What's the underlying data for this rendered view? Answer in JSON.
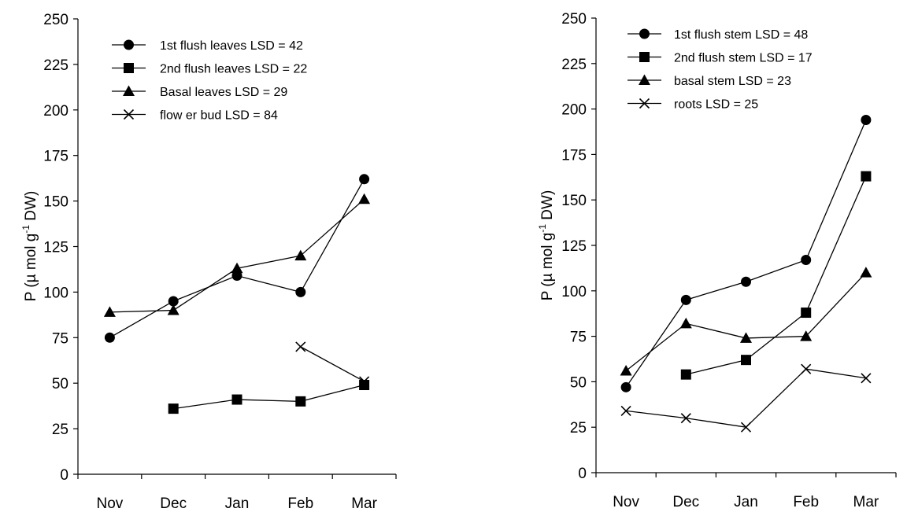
{
  "chart_data": [
    {
      "type": "line",
      "title": "",
      "xlabel": "",
      "ylabel": "P (µ mol g-1 DW)",
      "ylabel_main": "P (µ mol g",
      "ylabel_sup": "-1",
      "ylabel_end": " DW)",
      "ylim": [
        0,
        250
      ],
      "yticks": [
        0,
        25,
        50,
        75,
        100,
        125,
        150,
        175,
        200,
        225,
        250
      ],
      "categories": [
        "Nov",
        "Dec",
        "Jan",
        "Feb",
        "Mar"
      ],
      "legend_position": "top-left",
      "grid": false,
      "series": [
        {
          "name": "1st flush leaves LSD = 42",
          "marker": "circle",
          "values": [
            75,
            95,
            109,
            100,
            162
          ]
        },
        {
          "name": "2nd flush leaves LSD = 22",
          "marker": "square",
          "values": [
            null,
            36,
            41,
            40,
            49
          ]
        },
        {
          "name": "Basal leaves LSD = 29",
          "marker": "triangle",
          "values": [
            89,
            90,
            113,
            120,
            151
          ]
        },
        {
          "name": "flow er bud LSD = 84",
          "marker": "x",
          "values": [
            null,
            null,
            null,
            70,
            51
          ]
        }
      ]
    },
    {
      "type": "line",
      "title": "",
      "xlabel": "",
      "ylabel": "P (µ mol g-1 DW)",
      "ylabel_main": "P (µ mol g",
      "ylabel_sup": "-1",
      "ylabel_end": " DW)",
      "ylim": [
        0,
        250
      ],
      "yticks": [
        0,
        25,
        50,
        75,
        100,
        125,
        150,
        175,
        200,
        225,
        250
      ],
      "categories": [
        "Nov",
        "Dec",
        "Jan",
        "Feb",
        "Mar"
      ],
      "legend_position": "top-left",
      "grid": false,
      "series": [
        {
          "name": "1st flush stem LSD = 48",
          "marker": "circle",
          "values": [
            47,
            95,
            105,
            117,
            194
          ]
        },
        {
          "name": "2nd flush stem LSD = 17",
          "marker": "square",
          "values": [
            null,
            54,
            62,
            88,
            163
          ]
        },
        {
          "name": "basal stem LSD = 23",
          "marker": "triangle",
          "values": [
            56,
            82,
            74,
            75,
            110
          ]
        },
        {
          "name": "roots LSD = 25",
          "marker": "x",
          "values": [
            34,
            30,
            25,
            57,
            52
          ]
        }
      ]
    }
  ]
}
